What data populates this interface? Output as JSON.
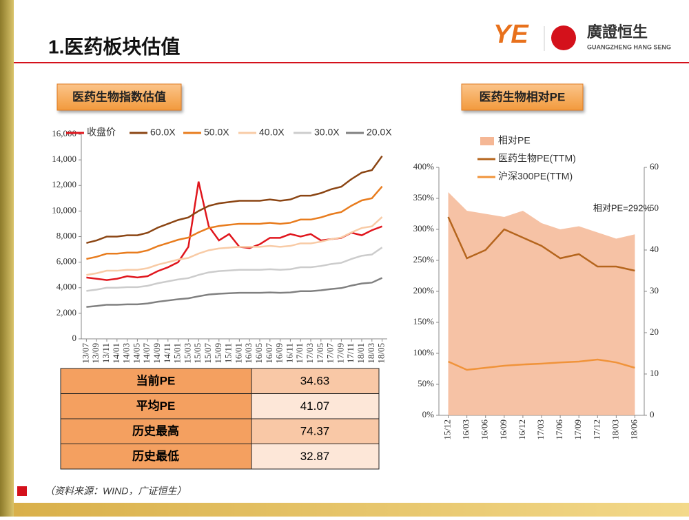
{
  "header": {
    "title": "1.医药板块估值",
    "logo_name": "廣證恒生",
    "logo_sub": "GUANGZHENG HANG SENG"
  },
  "footer": {
    "source": "（资料来源：WIND，广证恒生）"
  },
  "table": {
    "rows": [
      [
        "当前PE",
        "34.63"
      ],
      [
        "平均PE",
        "41.07"
      ],
      [
        "历史最高",
        "74.37"
      ],
      [
        "历史最低",
        "32.87"
      ]
    ]
  },
  "chart_data": [
    {
      "type": "line",
      "title": "医药生物指数估值",
      "categories": [
        "13/07",
        "13/09",
        "13/11",
        "14/01",
        "14/03",
        "14/05",
        "14/07",
        "14/09",
        "14/11",
        "15/01",
        "15/03",
        "15/05",
        "15/07",
        "15/09",
        "15/11",
        "16/01",
        "16/03",
        "16/05",
        "16/07",
        "16/09",
        "16/11",
        "17/01",
        "17/03",
        "17/05",
        "17/07",
        "17/09",
        "17/11",
        "18/01",
        "18/03",
        "18/05"
      ],
      "ylim": [
        0,
        16000
      ],
      "yticks": [
        0,
        {
          "value": 2000,
          "label": "2,000"
        },
        {
          "value": 4000,
          "label": "4,000"
        },
        {
          "value": 6000,
          "label": "6,000"
        },
        {
          "value": 8000,
          "label": "8,000"
        },
        {
          "value": 10000,
          "label": "10,000"
        },
        {
          "value": 12000,
          "label": "12,000"
        },
        {
          "value": 14000,
          "label": "14,000"
        },
        {
          "value": 16000,
          "label": "16,000"
        }
      ],
      "legend": "top",
      "series": [
        {
          "name": "收盘价",
          "color": "#e0161d",
          "values": [
            4800,
            4700,
            4600,
            4700,
            4900,
            4800,
            4900,
            5300,
            5600,
            6000,
            7200,
            12300,
            8800,
            7700,
            8200,
            7200,
            7100,
            7400,
            7900,
            7900,
            8200,
            8000,
            8200,
            7700,
            7800,
            7900,
            8300,
            8100,
            8500,
            8800
          ]
        },
        {
          "name": "60.0X",
          "color": "#8b4513",
          "values": [
            7500,
            7700,
            8000,
            8000,
            8100,
            8100,
            8300,
            8700,
            9000,
            9300,
            9500,
            10000,
            10400,
            10600,
            10700,
            10800,
            10800,
            10800,
            10900,
            10800,
            10900,
            11200,
            11200,
            11400,
            11700,
            11900,
            12500,
            13000,
            13200,
            14300
          ]
        },
        {
          "name": "50.0X",
          "color": "#e87c1e",
          "values": [
            6250,
            6420,
            6670,
            6670,
            6750,
            6750,
            6920,
            7250,
            7500,
            7750,
            7920,
            8330,
            8670,
            8830,
            8920,
            9000,
            9000,
            9000,
            9080,
            9000,
            9080,
            9330,
            9330,
            9500,
            9750,
            9920,
            10420,
            10830,
            11000,
            11920
          ]
        },
        {
          "name": "40.0X",
          "color": "#f8cba6",
          "values": [
            5000,
            5130,
            5330,
            5330,
            5400,
            5400,
            5530,
            5800,
            6000,
            6200,
            6330,
            6670,
            6930,
            7070,
            7130,
            7200,
            7200,
            7200,
            7270,
            7200,
            7270,
            7470,
            7470,
            7600,
            7800,
            7930,
            8330,
            8670,
            8800,
            9530
          ]
        },
        {
          "name": "30.0X",
          "color": "#cccccc",
          "values": [
            3750,
            3850,
            4000,
            4000,
            4050,
            4050,
            4150,
            4350,
            4500,
            4650,
            4750,
            5000,
            5200,
            5300,
            5350,
            5400,
            5400,
            5400,
            5450,
            5400,
            5450,
            5600,
            5600,
            5700,
            5850,
            5950,
            6250,
            6500,
            6600,
            7150
          ]
        },
        {
          "name": "20.0X",
          "color": "#808080",
          "values": [
            2500,
            2570,
            2670,
            2670,
            2700,
            2700,
            2770,
            2900,
            3000,
            3100,
            3170,
            3330,
            3470,
            3530,
            3570,
            3600,
            3600,
            3600,
            3630,
            3600,
            3630,
            3730,
            3730,
            3800,
            3900,
            3970,
            4170,
            4330,
            4400,
            4770
          ]
        }
      ]
    },
    {
      "type": "line",
      "title": "医药生物相对PE",
      "categories": [
        "15/12",
        "16/03",
        "16/06",
        "16/09",
        "16/12",
        "17/03",
        "17/06",
        "17/09",
        "17/12",
        "18/03",
        "18/06"
      ],
      "ylim": [
        0,
        400
      ],
      "yticks": [
        {
          "value": 0,
          "label": "0%"
        },
        {
          "value": 50,
          "label": "50%"
        },
        {
          "value": 100,
          "label": "100%"
        },
        {
          "value": 150,
          "label": "150%"
        },
        {
          "value": 200,
          "label": "200%"
        },
        {
          "value": 250,
          "label": "250%"
        },
        {
          "value": 300,
          "label": "300%"
        },
        {
          "value": 350,
          "label": "350%"
        },
        {
          "value": 400,
          "label": "400%"
        }
      ],
      "y2lim": [
        0,
        60
      ],
      "y2ticks": [
        0,
        10,
        20,
        30,
        40,
        50,
        60
      ],
      "legend": "top-left",
      "annotation": "相对PE=292%",
      "series": [
        {
          "name": "相对PE",
          "color": "#f5b795",
          "kind": "area",
          "values": [
            360,
            330,
            325,
            320,
            330,
            310,
            300,
            305,
            295,
            285,
            292
          ]
        },
        {
          "name": "医药生物PE(TTM)",
          "color": "#b5651d",
          "axis": "y2",
          "values": [
            48,
            38,
            40,
            45,
            43,
            41,
            38,
            39,
            36,
            36,
            35
          ]
        },
        {
          "name": "沪深300PE(TTM)",
          "color": "#f0933a",
          "axis": "y2",
          "values": [
            13,
            11,
            11.5,
            12,
            12.3,
            12.5,
            12.8,
            13,
            13.5,
            12.8,
            11.5
          ]
        }
      ]
    }
  ]
}
